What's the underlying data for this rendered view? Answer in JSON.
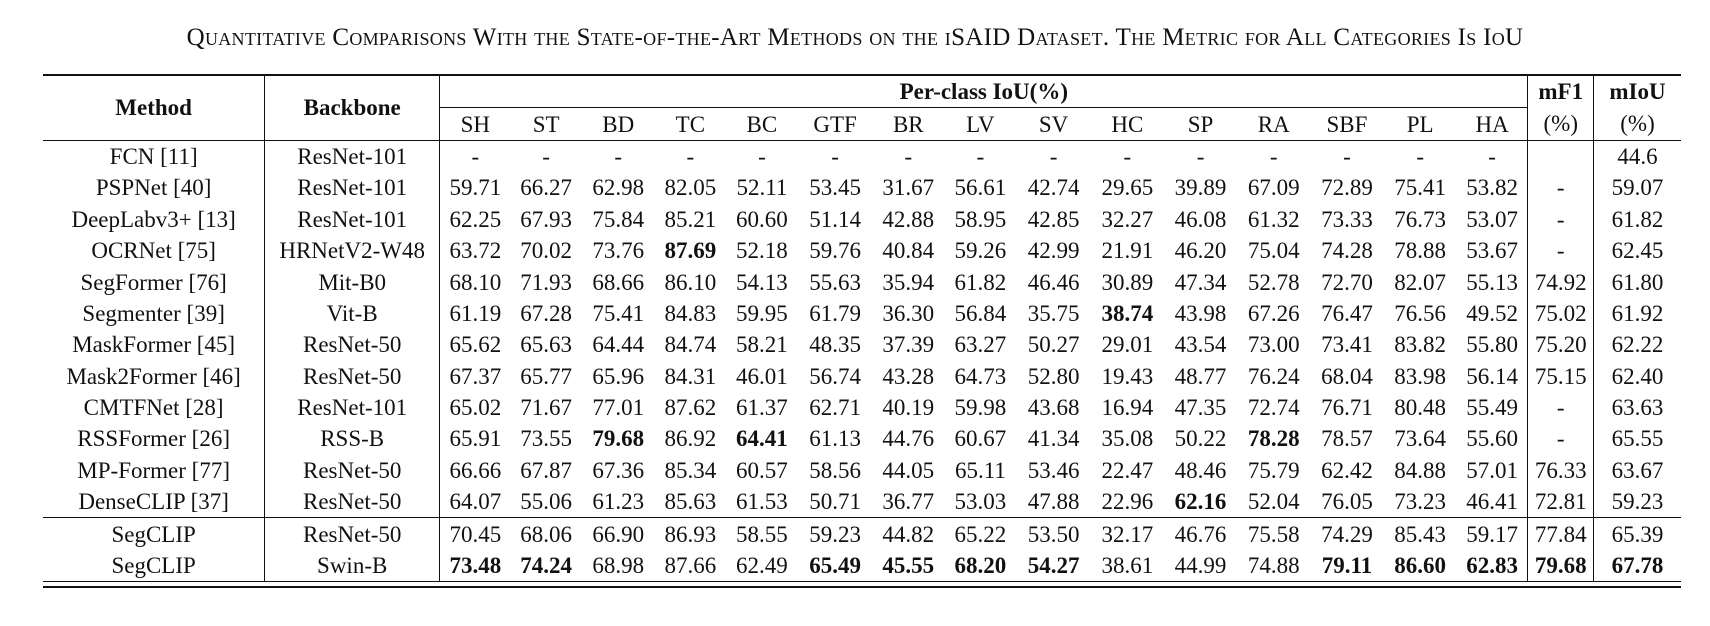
{
  "caption": "Quantitative Comparisons With the State-of-the-Art Methods on the iSAID Dataset. The Metric for All Categories Is IoU",
  "header": {
    "method": "Method",
    "backbone": "Backbone",
    "per_class": "Per-class IoU(%)",
    "mf1": "mF1",
    "miou": "mIoU",
    "mf1_unit": "(%)",
    "miou_unit": "(%)",
    "classes": [
      "SH",
      "ST",
      "BD",
      "TC",
      "BC",
      "GTF",
      "BR",
      "LV",
      "SV",
      "HC",
      "SP",
      "RA",
      "SBF",
      "PL",
      "HA"
    ]
  },
  "rows": [
    {
      "method": "FCN [11]",
      "backbone": "ResNet-101",
      "values": [
        "-",
        "-",
        "-",
        "-",
        "-",
        "-",
        "-",
        "-",
        "-",
        "-",
        "-",
        "-",
        "-",
        "-",
        "-"
      ],
      "mf1": "",
      "miou": "44.6",
      "bold": []
    },
    {
      "method": "PSPNet [40]",
      "backbone": "ResNet-101",
      "values": [
        "59.71",
        "66.27",
        "62.98",
        "82.05",
        "52.11",
        "53.45",
        "31.67",
        "56.61",
        "42.74",
        "29.65",
        "39.89",
        "67.09",
        "72.89",
        "75.41",
        "53.82"
      ],
      "mf1": "-",
      "miou": "59.07",
      "bold": []
    },
    {
      "method": "DeepLabv3+ [13]",
      "backbone": "ResNet-101",
      "values": [
        "62.25",
        "67.93",
        "75.84",
        "85.21",
        "60.60",
        "51.14",
        "42.88",
        "58.95",
        "42.85",
        "32.27",
        "46.08",
        "61.32",
        "73.33",
        "76.73",
        "53.07"
      ],
      "mf1": "-",
      "miou": "61.82",
      "bold": []
    },
    {
      "method": "OCRNet [75]",
      "backbone": "HRNetV2-W48",
      "values": [
        "63.72",
        "70.02",
        "73.76",
        "87.69",
        "52.18",
        "59.76",
        "40.84",
        "59.26",
        "42.99",
        "21.91",
        "46.20",
        "75.04",
        "74.28",
        "78.88",
        "53.67"
      ],
      "mf1": "-",
      "miou": "62.45",
      "bold": [
        3
      ]
    },
    {
      "method": "SegFormer [76]",
      "backbone": "Mit-B0",
      "values": [
        "68.10",
        "71.93",
        "68.66",
        "86.10",
        "54.13",
        "55.63",
        "35.94",
        "61.82",
        "46.46",
        "30.89",
        "47.34",
        "52.78",
        "72.70",
        "82.07",
        "55.13"
      ],
      "mf1": "74.92",
      "miou": "61.80",
      "bold": []
    },
    {
      "method": "Segmenter [39]",
      "backbone": "Vit-B",
      "values": [
        "61.19",
        "67.28",
        "75.41",
        "84.83",
        "59.95",
        "61.79",
        "36.30",
        "56.84",
        "35.75",
        "38.74",
        "43.98",
        "67.26",
        "76.47",
        "76.56",
        "49.52"
      ],
      "mf1": "75.02",
      "miou": "61.92",
      "bold": [
        9
      ]
    },
    {
      "method": "MaskFormer [45]",
      "backbone": "ResNet-50",
      "values": [
        "65.62",
        "65.63",
        "64.44",
        "84.74",
        "58.21",
        "48.35",
        "37.39",
        "63.27",
        "50.27",
        "29.01",
        "43.54",
        "73.00",
        "73.41",
        "83.82",
        "55.80"
      ],
      "mf1": "75.20",
      "miou": "62.22",
      "bold": []
    },
    {
      "method": "Mask2Former [46]",
      "backbone": "ResNet-50",
      "values": [
        "67.37",
        "65.77",
        "65.96",
        "84.31",
        "46.01",
        "56.74",
        "43.28",
        "64.73",
        "52.80",
        "19.43",
        "48.77",
        "76.24",
        "68.04",
        "83.98",
        "56.14"
      ],
      "mf1": "75.15",
      "miou": "62.40",
      "bold": []
    },
    {
      "method": "CMTFNet [28]",
      "backbone": "ResNet-101",
      "values": [
        "65.02",
        "71.67",
        "77.01",
        "87.62",
        "61.37",
        "62.71",
        "40.19",
        "59.98",
        "43.68",
        "16.94",
        "47.35",
        "72.74",
        "76.71",
        "80.48",
        "55.49"
      ],
      "mf1": "-",
      "miou": "63.63",
      "bold": []
    },
    {
      "method": "RSSFormer [26]",
      "backbone": "RSS-B",
      "values": [
        "65.91",
        "73.55",
        "79.68",
        "86.92",
        "64.41",
        "61.13",
        "44.76",
        "60.67",
        "41.34",
        "35.08",
        "50.22",
        "78.28",
        "78.57",
        "73.64",
        "55.60"
      ],
      "mf1": "-",
      "miou": "65.55",
      "bold": [
        2,
        4,
        11
      ]
    },
    {
      "method": "MP-Former [77]",
      "backbone": "ResNet-50",
      "values": [
        "66.66",
        "67.87",
        "67.36",
        "85.34",
        "60.57",
        "58.56",
        "44.05",
        "65.11",
        "53.46",
        "22.47",
        "48.46",
        "75.79",
        "62.42",
        "84.88",
        "57.01"
      ],
      "mf1": "76.33",
      "miou": "63.67",
      "bold": []
    },
    {
      "method": "DenseCLIP [37]",
      "backbone": "ResNet-50",
      "values": [
        "64.07",
        "55.06",
        "61.23",
        "85.63",
        "61.53",
        "50.71",
        "36.77",
        "53.03",
        "47.88",
        "22.96",
        "62.16",
        "52.04",
        "76.05",
        "73.23",
        "46.41"
      ],
      "mf1": "72.81",
      "miou": "59.23",
      "bold": [
        10
      ]
    },
    {
      "method": "SegCLIP",
      "backbone": "ResNet-50",
      "values": [
        "70.45",
        "68.06",
        "66.90",
        "86.93",
        "58.55",
        "59.23",
        "44.82",
        "65.22",
        "53.50",
        "32.17",
        "46.76",
        "75.58",
        "74.29",
        "85.43",
        "59.17"
      ],
      "mf1": "77.84",
      "miou": "65.39",
      "bold": [],
      "sep": true
    },
    {
      "method": "SegCLIP",
      "backbone": "Swin-B",
      "values": [
        "73.48",
        "74.24",
        "68.98",
        "87.66",
        "62.49",
        "65.49",
        "45.55",
        "68.20",
        "54.27",
        "38.61",
        "44.99",
        "74.88",
        "79.11",
        "86.60",
        "62.83"
      ],
      "mf1": "79.68",
      "miou": "67.78",
      "bold": [
        0,
        1,
        5,
        6,
        7,
        8,
        12,
        13,
        14,
        15,
        16
      ]
    }
  ]
}
